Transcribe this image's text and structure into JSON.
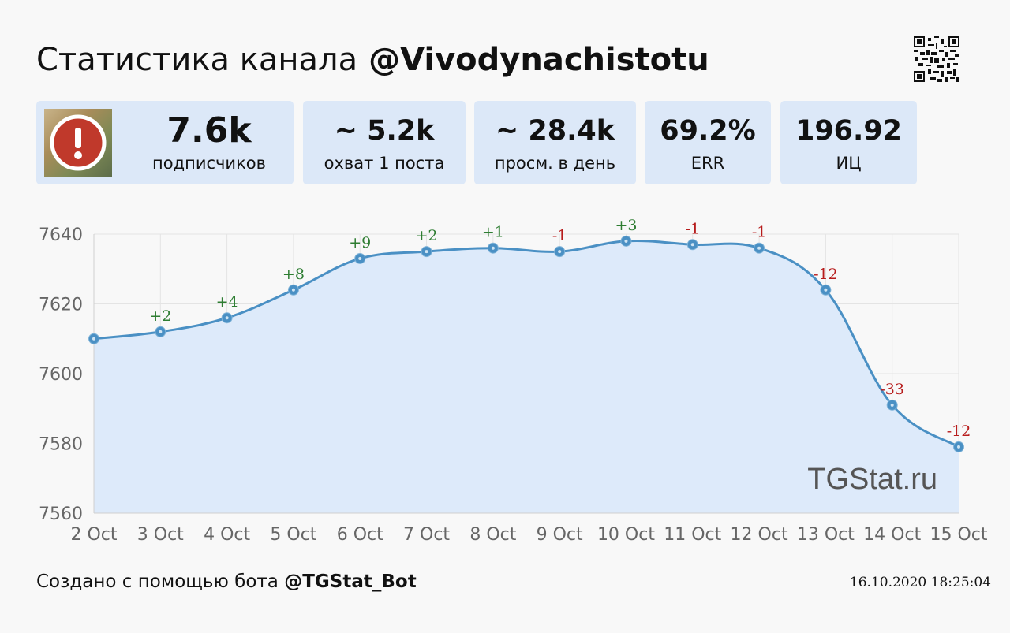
{
  "header": {
    "title_prefix": "Статистика канала",
    "channel_handle": "@Vivodynachistotu"
  },
  "stats": [
    {
      "value": "7.6k",
      "label": "подписчиков"
    },
    {
      "value": "~ 5.2k",
      "label": "охват 1 поста"
    },
    {
      "value": "~ 28.4k",
      "label": "просм. в день"
    },
    {
      "value": "69.2%",
      "label": "ERR"
    },
    {
      "value": "196.92",
      "label": "ИЦ"
    }
  ],
  "chart_data": {
    "type": "area",
    "categories": [
      "2 Oct",
      "3 Oct",
      "4 Oct",
      "5 Oct",
      "6 Oct",
      "7 Oct",
      "8 Oct",
      "9 Oct",
      "10 Oct",
      "11 Oct",
      "12 Oct",
      "13 Oct",
      "14 Oct",
      "15 Oct"
    ],
    "values": [
      7610,
      7612,
      7616,
      7624,
      7633,
      7635,
      7636,
      7635,
      7638,
      7637,
      7636,
      7624,
      7591,
      7579
    ],
    "data_labels": [
      "",
      "+2",
      "+4",
      "+8",
      "+9",
      "+2",
      "+1",
      "-1",
      "+3",
      "-1",
      "-1",
      "-12",
      "-33",
      "-12"
    ],
    "yticks": [
      7560,
      7580,
      7600,
      7620,
      7640
    ],
    "ylim": [
      7560,
      7640
    ],
    "grid": true,
    "colors": {
      "line": "#4a90c4",
      "fill": "#ddeafa",
      "positive": "#2e7d32",
      "negative": "#b71c1c",
      "axis_text": "#666666"
    },
    "watermark": "TGStat.ru"
  },
  "footer": {
    "created_prefix": "Создано с помощью бота",
    "bot_handle": "@TGStat_Bot",
    "timestamp": "16.10.2020 18:25:04"
  },
  "icons": {
    "avatar_badge": "exclamation-icon",
    "qr": "qr-code-icon"
  }
}
